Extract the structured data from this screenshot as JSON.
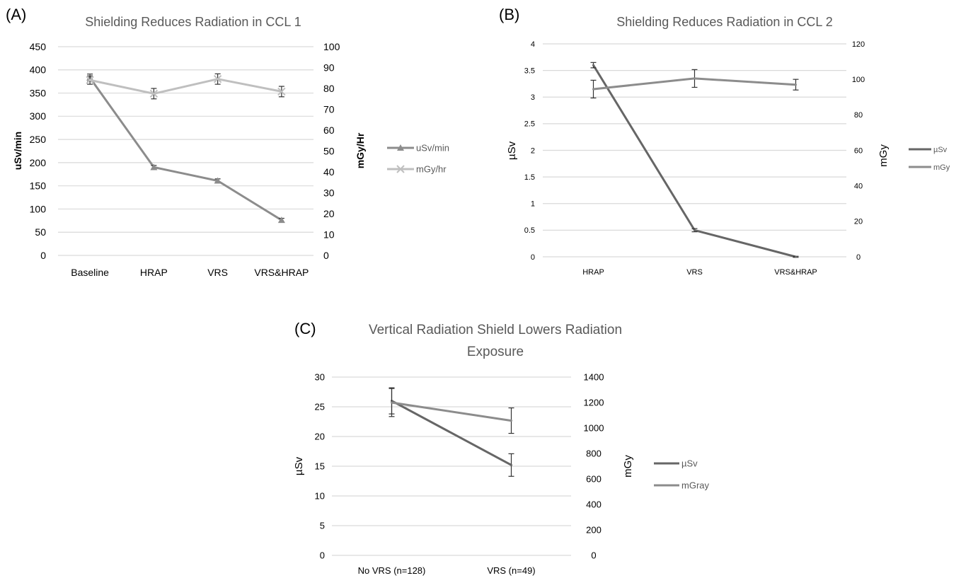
{
  "colors": {
    "dark_series": "#666666",
    "mid_series": "#8c8c8c",
    "light_series": "#bfbfbf",
    "grid": "#d9d9d9",
    "text": "#595959",
    "label": "#000000"
  },
  "chart_data": [
    {
      "panel": "(A)",
      "type": "line",
      "title": "Shielding Reduces Radiation in CCL 1",
      "categories": [
        "Baseline",
        "HRAP",
        "VRS",
        "VRS&HRAP"
      ],
      "ylabel": "uSv/min",
      "y2label": "mGy/Hr",
      "ylim": [
        0,
        450
      ],
      "y2lim": [
        0,
        100
      ],
      "yticks": [
        "0",
        "50",
        "100",
        "150",
        "200",
        "250",
        "300",
        "350",
        "400",
        "450"
      ],
      "y2ticks": [
        "0",
        "10",
        "20",
        "30",
        "40",
        "50",
        "60",
        "70",
        "80",
        "90",
        "100"
      ],
      "grid": true,
      "legend_position": "right",
      "series": [
        {
          "name": "uSv/min",
          "axis": "left",
          "marker": "triangle",
          "color": "#8c8c8c",
          "values": [
            383,
            190,
            161,
            76
          ],
          "error": [
            8,
            4,
            4,
            4
          ]
        },
        {
          "name": "mGy/hr",
          "axis": "right",
          "marker": "x",
          "color": "#bfbfbf",
          "values": [
            84,
            77.5,
            84.5,
            78.5
          ],
          "error": [
            2,
            2.5,
            2.5,
            2.5
          ]
        }
      ]
    },
    {
      "panel": "(B)",
      "type": "line",
      "title": "Shielding Reduces Radiation in CCL 2",
      "categories": [
        "HRAP",
        "VRS",
        "VRS&HRAP"
      ],
      "ylabel": "µSv",
      "y2label": "mGy",
      "ylim": [
        0,
        4
      ],
      "y2lim": [
        0,
        120
      ],
      "yticks": [
        "0",
        "0.5",
        "1",
        "1.5",
        "2",
        "2.5",
        "3",
        "3.5",
        "4"
      ],
      "y2ticks": [
        "0",
        "20",
        "40",
        "60",
        "80",
        "100",
        "120"
      ],
      "grid": true,
      "legend_position": "right",
      "series": [
        {
          "name": "µSv",
          "axis": "left",
          "marker": "none",
          "color": "#666666",
          "values": [
            3.6,
            0.5,
            0.0
          ],
          "error": [
            0.05,
            0.03,
            0.01
          ]
        },
        {
          "name": "mGy",
          "axis": "right",
          "marker": "none",
          "color": "#8c8c8c",
          "values": [
            94.5,
            100.5,
            97
          ],
          "error": [
            5,
            5,
            3
          ]
        }
      ]
    },
    {
      "panel": "(C)",
      "type": "line",
      "title": "Vertical Radiation Shield Lowers Radiation Exposure",
      "title_lines": [
        "Vertical Radiation Shield Lowers Radiation",
        "Exposure"
      ],
      "categories": [
        "No VRS (n=128)",
        "VRS (n=49)"
      ],
      "ylabel": "µSv",
      "y2label": "mGy",
      "ylim": [
        0,
        30
      ],
      "y2lim": [
        0,
        1400
      ],
      "yticks": [
        "0",
        "5",
        "10",
        "15",
        "20",
        "25",
        "30"
      ],
      "y2ticks": [
        "0",
        "200",
        "400",
        "600",
        "800",
        "1000",
        "1200",
        "1400"
      ],
      "grid": true,
      "legend_position": "right",
      "series": [
        {
          "name": "µSv",
          "axis": "left",
          "marker": "none",
          "color": "#666666",
          "values": [
            26,
            15.2
          ],
          "error": [
            2.2,
            1.9
          ]
        },
        {
          "name": "mGray",
          "axis": "right",
          "marker": "none",
          "color": "#8c8c8c",
          "values": [
            1200,
            1058
          ],
          "error": [
            110,
            100
          ]
        }
      ]
    }
  ]
}
